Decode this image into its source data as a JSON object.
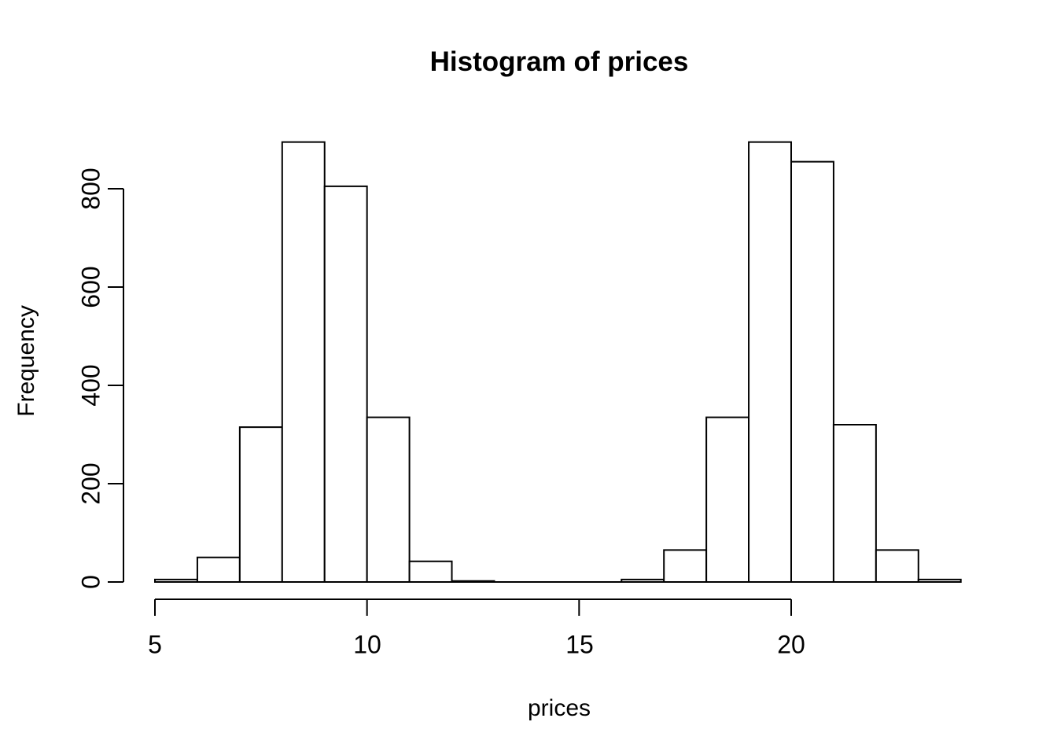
{
  "chart_data": {
    "type": "bar",
    "subtype": "histogram",
    "title": "Histogram of prices",
    "xlabel": "prices",
    "ylabel": "Frequency",
    "bin_start": 5,
    "bin_width": 1,
    "bin_edges": [
      5,
      6,
      7,
      8,
      9,
      10,
      11,
      12,
      13,
      14,
      15,
      16,
      17,
      18,
      19,
      20,
      21,
      22,
      23,
      24
    ],
    "counts": [
      5,
      50,
      315,
      895,
      805,
      335,
      42,
      2,
      0,
      0,
      0,
      5,
      65,
      335,
      895,
      855,
      320,
      65,
      5
    ],
    "x_ticks": [
      5,
      10,
      15,
      20
    ],
    "y_ticks": [
      0,
      200,
      400,
      600,
      800
    ],
    "xlim": [
      5,
      24
    ],
    "ylim": [
      0,
      800
    ],
    "grid": false,
    "legend": false,
    "bar_fill": "#ffffff",
    "bar_stroke": "#000000",
    "axis_color": "#000000",
    "text_color": "#000000",
    "background": "#ffffff"
  }
}
